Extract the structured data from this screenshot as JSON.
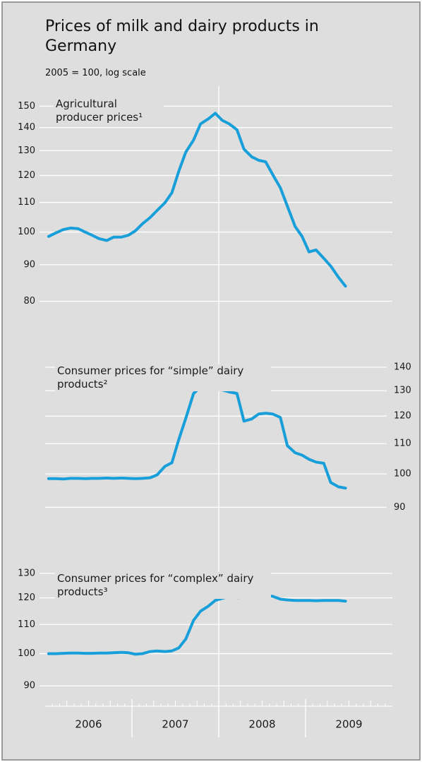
{
  "header": {
    "title": "Prices of milk and dairy products in Germany",
    "subtitle": "2005 = 100, log scale"
  },
  "chart_data": [
    {
      "type": "line",
      "log_scale": true,
      "grid": true,
      "x": [
        2006.04,
        2006.12,
        2006.21,
        2006.29,
        2006.38,
        2006.46,
        2006.54,
        2006.62,
        2006.71,
        2006.79,
        2006.88,
        2006.96,
        2007.04,
        2007.12,
        2007.21,
        2007.29,
        2007.38,
        2007.46,
        2007.54,
        2007.62,
        2007.71,
        2007.79,
        2007.88,
        2007.96,
        2008.04,
        2008.12,
        2008.21,
        2008.29,
        2008.38,
        2008.46,
        2008.54,
        2008.62,
        2008.71,
        2008.79,
        2008.88,
        2008.96,
        2009.04,
        2009.12,
        2009.21,
        2009.29,
        2009.38,
        2009.46
      ],
      "xlim": [
        2006,
        2010
      ],
      "ylim": [
        75,
        160
      ],
      "yticks": [
        80,
        90,
        100,
        110,
        120,
        130,
        140,
        150
      ],
      "series": [
        {
          "name": "Agricultural producer prices¹",
          "color": "#189fd9",
          "values": [
            98.6,
            99.7,
            100.8,
            101.3,
            101.1,
            100,
            99,
            97.9,
            97.3,
            98.4,
            98.4,
            99,
            100.4,
            102.7,
            104.8,
            107.2,
            109.9,
            113.5,
            121.7,
            129.4,
            134.5,
            141.7,
            144,
            146.6,
            143.3,
            141.7,
            139,
            130.6,
            127.4,
            126,
            125.4,
            120.4,
            115.3,
            108.7,
            101.8,
            98.6,
            93.8,
            94.4,
            91.9,
            89.6,
            86.4,
            84
          ]
        }
      ]
    },
    {
      "type": "line",
      "log_scale": true,
      "grid": true,
      "x": [
        2006.04,
        2006.12,
        2006.21,
        2006.29,
        2006.38,
        2006.46,
        2006.54,
        2006.62,
        2006.71,
        2006.79,
        2006.88,
        2006.96,
        2007.04,
        2007.12,
        2007.21,
        2007.29,
        2007.38,
        2007.46,
        2007.54,
        2007.62,
        2007.71,
        2007.79,
        2007.88,
        2007.96,
        2008.04,
        2008.12,
        2008.21,
        2008.29,
        2008.38,
        2008.46,
        2008.54,
        2008.62,
        2008.71,
        2008.79,
        2008.88,
        2008.96,
        2009.04,
        2009.12,
        2009.21,
        2009.29,
        2009.38,
        2009.46
      ],
      "xlim": [
        2006,
        2010
      ],
      "ylim": [
        85,
        150
      ],
      "yticks": [
        90,
        100,
        110,
        120,
        130,
        140
      ],
      "ytick_side": "right",
      "series": [
        {
          "name": "Consumer prices for “simple” dairy products²",
          "color": "#189fd9",
          "values": [
            98.5,
            98.5,
            98.4,
            98.6,
            98.6,
            98.5,
            98.6,
            98.6,
            98.7,
            98.6,
            98.7,
            98.6,
            98.5,
            98.6,
            98.8,
            99.7,
            102.4,
            103.6,
            111.5,
            119.2,
            128.9,
            131.5,
            132.5,
            130.7,
            130.3,
            129.5,
            128.9,
            118.1,
            118.9,
            120.8,
            121.1,
            120.8,
            119.5,
            109.3,
            106.9,
            106.1,
            104.7,
            103.8,
            103.4,
            97.3,
            96,
            95.6
          ]
        }
      ]
    },
    {
      "type": "line",
      "log_scale": true,
      "grid": true,
      "x": [
        2006.04,
        2006.12,
        2006.21,
        2006.29,
        2006.38,
        2006.46,
        2006.54,
        2006.62,
        2006.71,
        2006.79,
        2006.88,
        2006.96,
        2007.04,
        2007.12,
        2007.21,
        2007.29,
        2007.38,
        2007.46,
        2007.54,
        2007.62,
        2007.71,
        2007.79,
        2007.88,
        2007.96,
        2008.04,
        2008.12,
        2008.21,
        2008.29,
        2008.38,
        2008.46,
        2008.54,
        2008.62,
        2008.71,
        2008.79,
        2008.88,
        2008.96,
        2009.04,
        2009.12,
        2009.21,
        2009.29,
        2009.38,
        2009.46
      ],
      "xlim": [
        2006,
        2010
      ],
      "xticks": [
        2006,
        2007,
        2008,
        2009,
        2010
      ],
      "periods": [
        "2006",
        "2007",
        "2008",
        "2009"
      ],
      "ylim": [
        85,
        138
      ],
      "yticks": [
        90,
        100,
        110,
        120,
        130
      ],
      "series": [
        {
          "name": "Consumer prices for “complex” dairy products³",
          "color": "#189fd9",
          "values": [
            100,
            100,
            100.1,
            100.2,
            100.2,
            100.1,
            100.1,
            100.2,
            100.2,
            100.3,
            100.4,
            100.3,
            99.8,
            100,
            100.7,
            100.9,
            100.7,
            100.9,
            101.9,
            104.9,
            111.5,
            114.9,
            116.8,
            119,
            119.8,
            120.6,
            120.1,
            120.3,
            120.3,
            120.9,
            120.9,
            120.6,
            119.5,
            119.2,
            119,
            119,
            119,
            118.9,
            119,
            119,
            119,
            118.7
          ]
        }
      ]
    }
  ]
}
